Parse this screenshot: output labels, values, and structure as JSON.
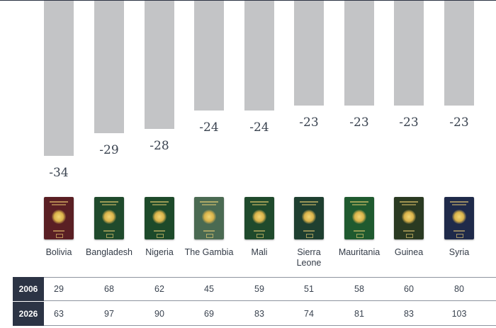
{
  "chart_data": {
    "type": "bar",
    "categories": [
      "Bolivia",
      "Bangladesh",
      "Nigeria",
      "The Gambia",
      "Mali",
      "Sierra Leone",
      "Mauritania",
      "Guinea",
      "Syria"
    ],
    "values": [
      -34,
      -29,
      -28,
      -24,
      -24,
      -23,
      -23,
      -23,
      -23
    ],
    "value_labels": [
      "-34",
      "-29",
      "-28",
      "-24",
      "-24",
      "-23",
      "-23",
      "-23",
      "-23"
    ],
    "title": "",
    "xlabel": "",
    "ylabel": "",
    "bar_color": "#c3c4c6",
    "passport_colors": [
      "#5a1f24",
      "#1f4a2c",
      "#1d4a2a",
      "#4a6a52",
      "#1f4a2c",
      "#1e3f30",
      "#1f5a2f",
      "#2a3a22",
      "#1f2a4a"
    ],
    "table": {
      "rows": [
        {
          "label": "2006",
          "values": [
            "29",
            "68",
            "62",
            "45",
            "59",
            "51",
            "58",
            "60",
            "80"
          ]
        },
        {
          "label": "2026",
          "values": [
            "63",
            "97",
            "90",
            "69",
            "83",
            "74",
            "81",
            "83",
            "103"
          ]
        }
      ]
    }
  }
}
